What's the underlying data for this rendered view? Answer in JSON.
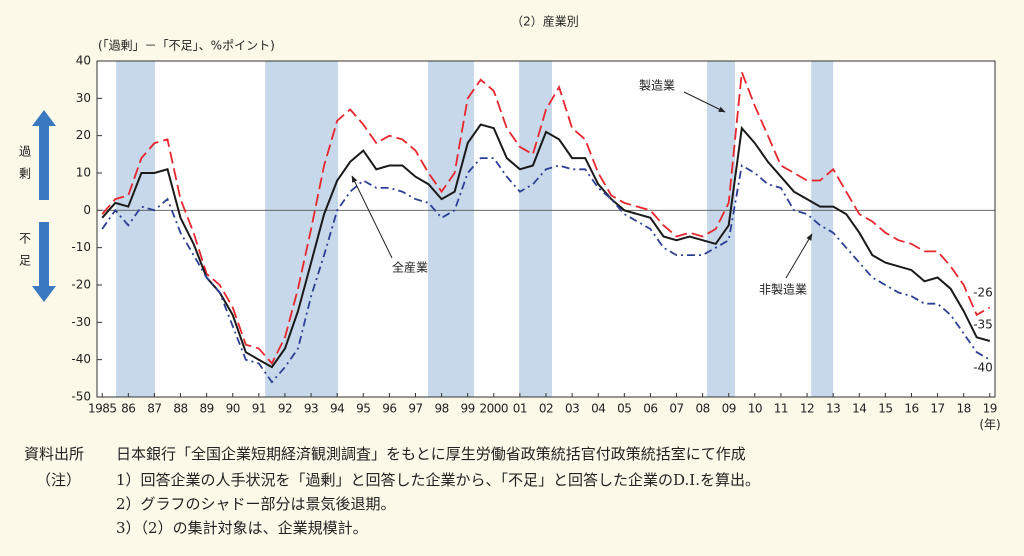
{
  "chart_data": {
    "type": "line",
    "title": "（2）産業別",
    "y_label": "(「過剰」－「不足」、%ポイント)",
    "x_unit": "(年)",
    "side_labels": [
      "過剰",
      "不足"
    ],
    "xlim": [
      1984.8,
      2019.2
    ],
    "ylim": [
      -50,
      40
    ],
    "yticks": [
      40,
      30,
      20,
      10,
      0,
      -10,
      -20,
      -30,
      -40,
      -50
    ],
    "xticks": [
      1985,
      {
        "value": 1986,
        "label": "86"
      },
      {
        "value": 1987,
        "label": "87"
      },
      {
        "value": 1988,
        "label": "88"
      },
      {
        "value": 1989,
        "label": "89"
      },
      {
        "value": 1990,
        "label": "90"
      },
      {
        "value": 1991,
        "label": "91"
      },
      {
        "value": 1992,
        "label": "92"
      },
      {
        "value": 1993,
        "label": "93"
      },
      {
        "value": 1994,
        "label": "94"
      },
      {
        "value": 1995,
        "label": "95"
      },
      {
        "value": 1996,
        "label": "96"
      },
      {
        "value": 1997,
        "label": "97"
      },
      {
        "value": 1998,
        "label": "98"
      },
      {
        "value": 1999,
        "label": "99"
      },
      2000,
      {
        "value": 2001,
        "label": "01"
      },
      {
        "value": 2002,
        "label": "02"
      },
      {
        "value": 2003,
        "label": "03"
      },
      {
        "value": 2004,
        "label": "04"
      },
      {
        "value": 2005,
        "label": "05"
      },
      {
        "value": 2006,
        "label": "06"
      },
      {
        "value": 2007,
        "label": "07"
      },
      {
        "value": 2008,
        "label": "08"
      },
      {
        "value": 2009,
        "label": "09"
      },
      {
        "value": 2010,
        "label": "10"
      },
      {
        "value": 2011,
        "label": "11"
      },
      {
        "value": 2012,
        "label": "12"
      },
      {
        "value": 2013,
        "label": "13"
      },
      {
        "value": 2014,
        "label": "14"
      },
      {
        "value": 2015,
        "label": "15"
      },
      {
        "value": 2016,
        "label": "16"
      },
      {
        "value": 2017,
        "label": "17"
      },
      {
        "value": 2018,
        "label": "18"
      },
      {
        "value": 2019,
        "label": "19"
      }
    ],
    "shaded_periods": [
      [
        1985.53,
        1987.02
      ],
      [
        1991.24,
        1994.03
      ],
      [
        1997.48,
        1999.24
      ],
      [
        2000.97,
        2002.23
      ],
      [
        2008.17,
        2009.24
      ],
      [
        2012.16,
        2013.0
      ]
    ],
    "shade_color": "#c6d8ea",
    "x": [
      1985.0,
      1985.5,
      1986.0,
      1986.5,
      1987.0,
      1987.5,
      1988.0,
      1988.5,
      1989.0,
      1989.5,
      1990.0,
      1990.5,
      1991.0,
      1991.5,
      1992.0,
      1992.5,
      1993.0,
      1993.5,
      1994.0,
      1994.5,
      1995.0,
      1995.5,
      1996.0,
      1996.5,
      1997.0,
      1997.5,
      1998.0,
      1998.5,
      1999.0,
      1999.5,
      2000.0,
      2000.5,
      2001.0,
      2001.5,
      2002.0,
      2002.5,
      2003.0,
      2003.5,
      2004.0,
      2004.5,
      2005.0,
      2005.5,
      2006.0,
      2006.5,
      2007.0,
      2007.5,
      2008.0,
      2008.5,
      2009.0,
      2009.5,
      2010.0,
      2010.5,
      2011.0,
      2011.5,
      2012.0,
      2012.5,
      2013.0,
      2013.5,
      2014.0,
      2014.5,
      2015.0,
      2015.5,
      2016.0,
      2016.5,
      2017.0,
      2017.5,
      2018.0,
      2018.5,
      2019.0
    ],
    "series": [
      {
        "name": "製造業",
        "color": "#e8262d",
        "line_style": "dashed",
        "values": [
          -1,
          3,
          4,
          14,
          18,
          19,
          3,
          -6,
          -17,
          -20,
          -26,
          -36,
          -37,
          -41,
          -34,
          -21,
          -5,
          12,
          24,
          27,
          23,
          18,
          20,
          19,
          16,
          10,
          5,
          10,
          30,
          35,
          32,
          22,
          17,
          15,
          27,
          33,
          22,
          19,
          10,
          4,
          2,
          1,
          0,
          -4,
          -7,
          -6,
          -7,
          -5,
          2,
          37,
          28,
          20,
          12,
          10,
          8,
          8,
          11,
          5,
          -1,
          -3,
          -6,
          -8,
          -9,
          -11,
          -11,
          -15,
          -20,
          -28,
          -26
        ]
      },
      {
        "name": "全産業",
        "color": "#1a1a1a",
        "line_style": "solid",
        "values": [
          -2,
          2,
          1,
          10,
          10,
          11,
          -2,
          -9,
          -18,
          -22,
          -28,
          -38,
          -40,
          -42,
          -37,
          -27,
          -14,
          -1,
          8,
          13,
          16,
          11,
          12,
          12,
          9,
          7,
          3,
          5,
          18,
          23,
          22,
          14,
          11,
          12,
          21,
          19,
          14,
          14,
          7,
          3,
          0,
          -1,
          -2,
          -7,
          -8,
          -7,
          -8,
          -9,
          -4,
          22,
          18,
          13,
          9,
          5,
          3,
          1,
          1,
          -1,
          -6,
          -12,
          -14,
          -15,
          -16,
          -19,
          -18,
          -21,
          -27,
          -34,
          -35
        ]
      },
      {
        "name": "非製造業",
        "color": "#2d3f95",
        "line_style": "dashdot",
        "values": [
          -5,
          0,
          -4,
          1,
          0,
          3,
          -6,
          -12,
          -18,
          -22,
          -31,
          -40,
          -41,
          -46,
          -42,
          -37,
          -23,
          -12,
          0,
          5,
          8,
          6,
          6,
          5,
          3,
          2,
          -2,
          0,
          10,
          14,
          14,
          9,
          5,
          7,
          11,
          12,
          11,
          11,
          6,
          3,
          -1,
          -3,
          -5,
          -10,
          -12,
          -12,
          -12,
          -10,
          -8,
          12,
          10,
          7,
          6,
          0,
          -1,
          -4,
          -6,
          -10,
          -14,
          -18,
          -20,
          -22,
          -23,
          -25,
          -25,
          -28,
          -33,
          -38,
          -40
        ]
      }
    ]
  },
  "notes": {
    "source_label": "資料出所",
    "source": "日本銀行「全国企業短期経済観測調査」をもとに厚生労働省政策統括官付政策統括室にて作成",
    "note_label": "（注）",
    "items": [
      "1）回答企業の人手状況を「過剰」と回答した企業から、「不足」と回答した企業のD.I.を算出。",
      "2）グラフのシャドー部分は景気後退期。",
      "3）（2）の集計対象は、企業規模計。"
    ]
  }
}
